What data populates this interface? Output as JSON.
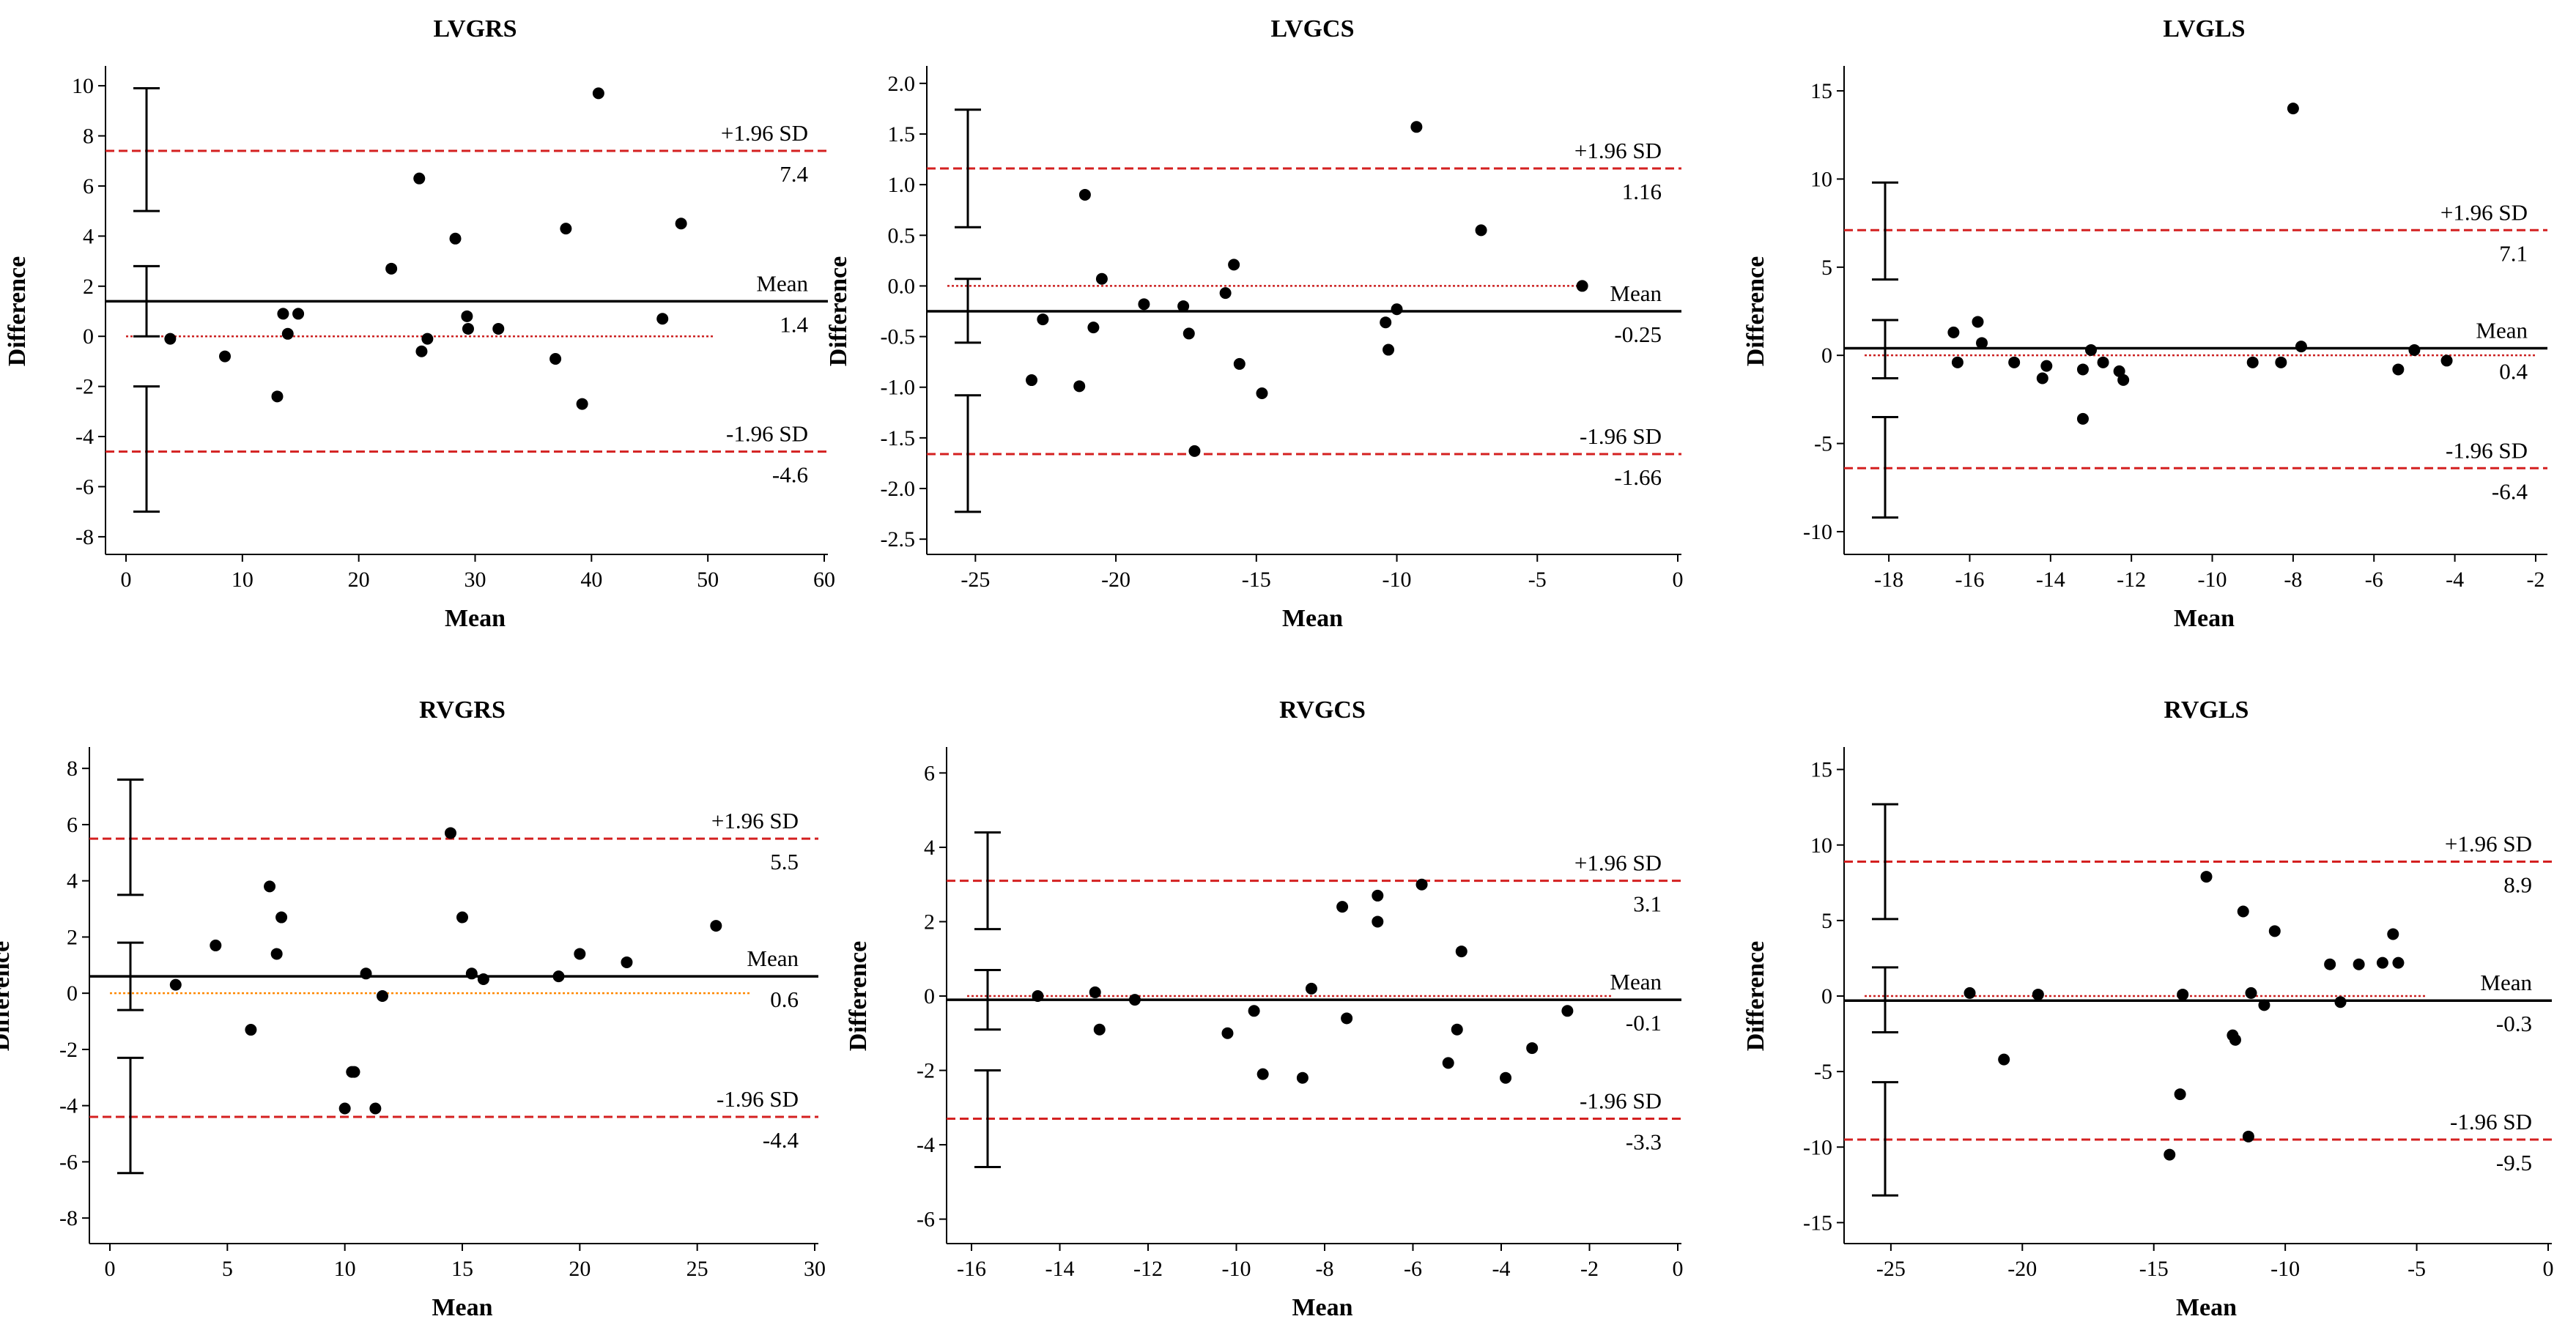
{
  "chart_data": [
    {
      "type": "scatter",
      "title": "LVGRS",
      "xlabel": "Mean",
      "ylabel": "Difference",
      "xlim": [
        0,
        60
      ],
      "ylim": [
        -8.5,
        10.5
      ],
      "xticks": [
        0,
        10,
        20,
        30,
        40,
        50,
        60
      ],
      "yticks": [
        10,
        8,
        6,
        4,
        2,
        0,
        -2,
        -4,
        -6,
        -8
      ],
      "x_ticklabels": [
        "0",
        "10",
        "20",
        "30",
        "40",
        "50",
        "60"
      ],
      "y_ticklabels": [
        "10",
        "8",
        "6",
        "4",
        "2",
        "0",
        "-2",
        "-4",
        "-6",
        "-8"
      ],
      "mean": 1.4,
      "upper_loa": 7.4,
      "lower_loa": -4.6,
      "labels": {
        "upper": "+1.96 SD",
        "upper_value": "7.4",
        "mean": "Mean",
        "mean_value": "1.4",
        "lower": "-1.96 SD",
        "lower_value": "-4.6"
      },
      "zero_line": {
        "x_end": 50.5,
        "color": "#cc2222"
      },
      "error_bars": [
        {
          "low": 5.0,
          "high": 9.9
        },
        {
          "low": 0.0,
          "high": 2.8
        },
        {
          "low": -7.0,
          "high": -2.0
        }
      ],
      "points": [
        [
          3.8,
          -0.1
        ],
        [
          8.5,
          -0.8
        ],
        [
          13.0,
          -2.4
        ],
        [
          13.5,
          0.9
        ],
        [
          13.9,
          0.1
        ],
        [
          14.8,
          0.9
        ],
        [
          22.8,
          2.7
        ],
        [
          25.2,
          6.3
        ],
        [
          25.4,
          -0.6
        ],
        [
          25.9,
          -0.1
        ],
        [
          28.3,
          3.9
        ],
        [
          29.3,
          0.8
        ],
        [
          29.4,
          0.3
        ],
        [
          32.0,
          0.3
        ],
        [
          36.9,
          -0.9
        ],
        [
          37.8,
          4.3
        ],
        [
          39.2,
          -2.7
        ],
        [
          40.6,
          9.7
        ],
        [
          46.1,
          0.7
        ],
        [
          47.7,
          4.5
        ]
      ]
    },
    {
      "type": "scatter",
      "title": "LVGCS",
      "xlabel": "Mean",
      "ylabel": "Difference",
      "xlim": [
        -26,
        0
      ],
      "ylim": [
        -2.6,
        2.1
      ],
      "xticks": [
        -25,
        -20,
        -15,
        -10,
        -5,
        0
      ],
      "yticks": [
        2.0,
        1.5,
        1.0,
        0.5,
        0.0,
        -0.5,
        -1.0,
        -1.5,
        -2.0,
        -2.5
      ],
      "x_ticklabels": [
        "-25",
        "-20",
        "-15",
        "-10",
        "-5",
        "0"
      ],
      "y_ticklabels": [
        "2.0",
        "1.5",
        "1.0",
        "0.5",
        "0.0",
        "-0.5",
        "-1.0",
        "-1.5",
        "-2.0",
        "-2.5"
      ],
      "mean": -0.25,
      "upper_loa": 1.16,
      "lower_loa": -1.66,
      "labels": {
        "upper": "+1.96 SD",
        "upper_value": "1.16",
        "mean": "Mean",
        "mean_value": "-0.25",
        "lower": "-1.96 SD",
        "lower_value": "-1.66"
      },
      "zero_line": {
        "x_end": -3.4,
        "color": "#cc2222"
      },
      "error_bars": [
        {
          "low": 0.58,
          "high": 1.74
        },
        {
          "low": -0.56,
          "high": 0.07
        },
        {
          "low": -2.23,
          "high": -1.08
        }
      ],
      "points": [
        [
          -23.0,
          -0.93
        ],
        [
          -22.6,
          -0.33
        ],
        [
          -21.3,
          -0.99
        ],
        [
          -21.1,
          0.9
        ],
        [
          -20.8,
          -0.41
        ],
        [
          -20.5,
          0.07
        ],
        [
          -19.0,
          -0.18
        ],
        [
          -17.6,
          -0.2
        ],
        [
          -17.4,
          -0.47
        ],
        [
          -17.2,
          -1.63
        ],
        [
          -16.1,
          -0.07
        ],
        [
          -15.8,
          0.21
        ],
        [
          -15.6,
          -0.77
        ],
        [
          -14.8,
          -1.06
        ],
        [
          -10.4,
          -0.36
        ],
        [
          -10.3,
          -0.63
        ],
        [
          -10.0,
          -0.23
        ],
        [
          -9.3,
          1.57
        ],
        [
          -7.0,
          0.55
        ],
        [
          -3.4,
          0.0
        ]
      ]
    },
    {
      "type": "scatter",
      "title": "LVGLS",
      "xlabel": "Mean",
      "ylabel": "Difference",
      "xlim": [
        -18.6,
        -1.8
      ],
      "ylim": [
        -11,
        16
      ],
      "xticks": [
        -18,
        -16,
        -14,
        -12,
        -10,
        -8,
        -6,
        -4,
        -2
      ],
      "yticks": [
        15,
        10,
        5,
        0,
        -5,
        -10
      ],
      "x_ticklabels": [
        "-18",
        "-16",
        "-14",
        "-12",
        "-10",
        "-8",
        "-6",
        "-4",
        "-2"
      ],
      "y_ticklabels": [
        "15",
        "10",
        "5",
        "0",
        "-5",
        "-10"
      ],
      "mean": 0.4,
      "upper_loa": 7.1,
      "lower_loa": -6.4,
      "labels": {
        "upper": "+1.96 SD",
        "upper_value": "7.1",
        "mean": "Mean",
        "mean_value": "0.4",
        "lower": "-1.96 SD",
        "lower_value": "-6.4"
      },
      "zero_line": {
        "x_end": -2.0,
        "color": "#cc2222"
      },
      "error_bars": [
        {
          "low": 4.3,
          "high": 9.8
        },
        {
          "low": -1.3,
          "high": 2.0
        },
        {
          "low": -9.2,
          "high": -3.5
        }
      ],
      "points": [
        [
          -16.4,
          1.3
        ],
        [
          -16.3,
          -0.4
        ],
        [
          -15.8,
          1.9
        ],
        [
          -15.7,
          0.7
        ],
        [
          -14.9,
          -0.4
        ],
        [
          -14.2,
          -1.3
        ],
        [
          -14.1,
          -0.6
        ],
        [
          -13.2,
          -0.8
        ],
        [
          -13.2,
          -3.6
        ],
        [
          -13.0,
          0.3
        ],
        [
          -12.7,
          -0.4
        ],
        [
          -12.3,
          -0.9
        ],
        [
          -12.2,
          -1.4
        ],
        [
          -9.0,
          -0.4
        ],
        [
          -8.3,
          -0.4
        ],
        [
          -8.0,
          14.0
        ],
        [
          -7.8,
          0.5
        ],
        [
          -5.4,
          -0.8
        ],
        [
          -5.0,
          0.3
        ],
        [
          -4.2,
          -0.3
        ]
      ]
    },
    {
      "type": "scatter",
      "title": "RVGRS",
      "xlabel": "Mean",
      "ylabel": "Difference",
      "xlim": [
        0,
        30
      ],
      "ylim": [
        -8.7,
        8.5
      ],
      "xticks": [
        0,
        5,
        10,
        15,
        20,
        25,
        30
      ],
      "yticks": [
        8,
        6,
        4,
        2,
        0,
        -2,
        -4,
        -6,
        -8
      ],
      "x_ticklabels": [
        "0",
        "5",
        "10",
        "15",
        "20",
        "25",
        "30"
      ],
      "y_ticklabels": [
        "8",
        "6",
        "4",
        "2",
        "0",
        "-2",
        "-4",
        "-6",
        "-8"
      ],
      "mean": 0.6,
      "upper_loa": 5.5,
      "lower_loa": -4.4,
      "labels": {
        "upper": "+1.96 SD",
        "upper_value": "5.5",
        "mean": "Mean",
        "mean_value": "0.6",
        "lower": "-1.96 SD",
        "lower_value": "-4.4"
      },
      "zero_line": {
        "x_end": 27.3,
        "color": "#ff8800"
      },
      "error_bars": [
        {
          "low": 3.5,
          "high": 7.6
        },
        {
          "low": -0.6,
          "high": 1.8
        },
        {
          "low": -6.4,
          "high": -2.3
        }
      ],
      "points": [
        [
          2.8,
          0.3
        ],
        [
          4.5,
          1.7
        ],
        [
          6.0,
          -1.3
        ],
        [
          6.8,
          3.8
        ],
        [
          7.1,
          1.4
        ],
        [
          7.3,
          2.7
        ],
        [
          10.0,
          -4.1
        ],
        [
          10.3,
          -2.8
        ],
        [
          10.4,
          -2.8
        ],
        [
          10.9,
          0.7
        ],
        [
          11.3,
          -4.1
        ],
        [
          11.6,
          -0.1
        ],
        [
          14.5,
          5.7
        ],
        [
          15.0,
          2.7
        ],
        [
          15.4,
          0.7
        ],
        [
          15.9,
          0.5
        ],
        [
          19.1,
          0.6
        ],
        [
          20.0,
          1.4
        ],
        [
          22.0,
          1.1
        ],
        [
          25.8,
          2.4
        ]
      ]
    },
    {
      "type": "scatter",
      "title": "RVGCS",
      "xlabel": "Mean",
      "ylabel": "Difference",
      "xlim": [
        -16.1,
        0
      ],
      "ylim": [
        -6.5,
        6.5
      ],
      "xticks": [
        -16,
        -14,
        -12,
        -10,
        -8,
        -6,
        -4,
        -2,
        0
      ],
      "yticks": [
        6,
        4,
        2,
        0,
        -2,
        -4,
        -6
      ],
      "x_ticklabels": [
        "-16",
        "-14",
        "-12",
        "-10",
        "-8",
        "-6",
        "-4",
        "-2",
        "0"
      ],
      "y_ticklabels": [
        "6",
        "4",
        "2",
        "0",
        "-2",
        "-4",
        "-6"
      ],
      "mean": -0.1,
      "upper_loa": 3.1,
      "lower_loa": -3.3,
      "labels": {
        "upper": "+1.96 SD",
        "upper_value": "3.1",
        "mean": "Mean",
        "mean_value": "-0.1",
        "lower": "-1.96 SD",
        "lower_value": "-3.3"
      },
      "zero_line": {
        "x_end": -1.5,
        "color": "#cc2222"
      },
      "error_bars": [
        {
          "low": 1.8,
          "high": 4.4
        },
        {
          "low": -0.9,
          "high": 0.7
        },
        {
          "low": -4.6,
          "high": -2.0
        }
      ],
      "points": [
        [
          -14.5,
          0.0
        ],
        [
          -13.2,
          0.1
        ],
        [
          -13.1,
          -0.9
        ],
        [
          -12.3,
          -0.1
        ],
        [
          -10.2,
          -1.0
        ],
        [
          -9.6,
          -0.4
        ],
        [
          -9.4,
          -2.1
        ],
        [
          -8.5,
          -2.2
        ],
        [
          -8.3,
          0.2
        ],
        [
          -7.6,
          2.4
        ],
        [
          -7.5,
          -0.6
        ],
        [
          -6.8,
          2.0
        ],
        [
          -6.8,
          2.7
        ],
        [
          -5.8,
          3.0
        ],
        [
          -5.2,
          -1.8
        ],
        [
          -5.0,
          -0.9
        ],
        [
          -4.9,
          1.2
        ],
        [
          -3.9,
          -2.2
        ],
        [
          -3.3,
          -1.4
        ],
        [
          -2.5,
          -0.4
        ]
      ]
    },
    {
      "type": "scatter",
      "title": "RVGLS",
      "xlabel": "Mean",
      "ylabel": "Difference",
      "xlim": [
        -26,
        0
      ],
      "ylim": [
        -16,
        16
      ],
      "xticks": [
        -25,
        -20,
        -15,
        -10,
        -5,
        0
      ],
      "yticks": [
        15,
        10,
        5,
        0,
        -5,
        -10,
        -15
      ],
      "x_ticklabels": [
        "-25",
        "-20",
        "-15",
        "-10",
        "-5",
        "0"
      ],
      "y_ticklabels": [
        "15",
        "10",
        "5",
        "0",
        "-5",
        "-10",
        "-15"
      ],
      "mean": -0.3,
      "upper_loa": 8.9,
      "lower_loa": -9.5,
      "labels": {
        "upper": "+1.96 SD",
        "upper_value": "8.9",
        "mean": "Mean",
        "mean_value": "-0.3",
        "lower": "-1.96 SD",
        "lower_value": "-9.5"
      },
      "zero_line": {
        "x_end": -4.6,
        "color": "#cc2222"
      },
      "error_bars": [
        {
          "low": 5.1,
          "high": 12.7
        },
        {
          "low": -2.4,
          "high": 1.9
        },
        {
          "low": -13.2,
          "high": -5.7
        }
      ],
      "points": [
        [
          -22.0,
          0.2
        ],
        [
          -20.7,
          -4.2
        ],
        [
          -19.4,
          0.1
        ],
        [
          -14.4,
          -10.5
        ],
        [
          -14.0,
          -6.5
        ],
        [
          -13.9,
          0.1
        ],
        [
          -13.0,
          7.9
        ],
        [
          -12.0,
          -2.6
        ],
        [
          -11.9,
          -2.9
        ],
        [
          -11.6,
          5.6
        ],
        [
          -11.4,
          -9.3
        ],
        [
          -11.3,
          0.2
        ],
        [
          -10.8,
          -0.6
        ],
        [
          -10.4,
          4.3
        ],
        [
          -8.3,
          2.1
        ],
        [
          -7.9,
          -0.4
        ],
        [
          -7.2,
          2.1
        ],
        [
          -6.3,
          2.2
        ],
        [
          -5.9,
          4.1
        ],
        [
          -5.7,
          2.2
        ]
      ]
    }
  ]
}
